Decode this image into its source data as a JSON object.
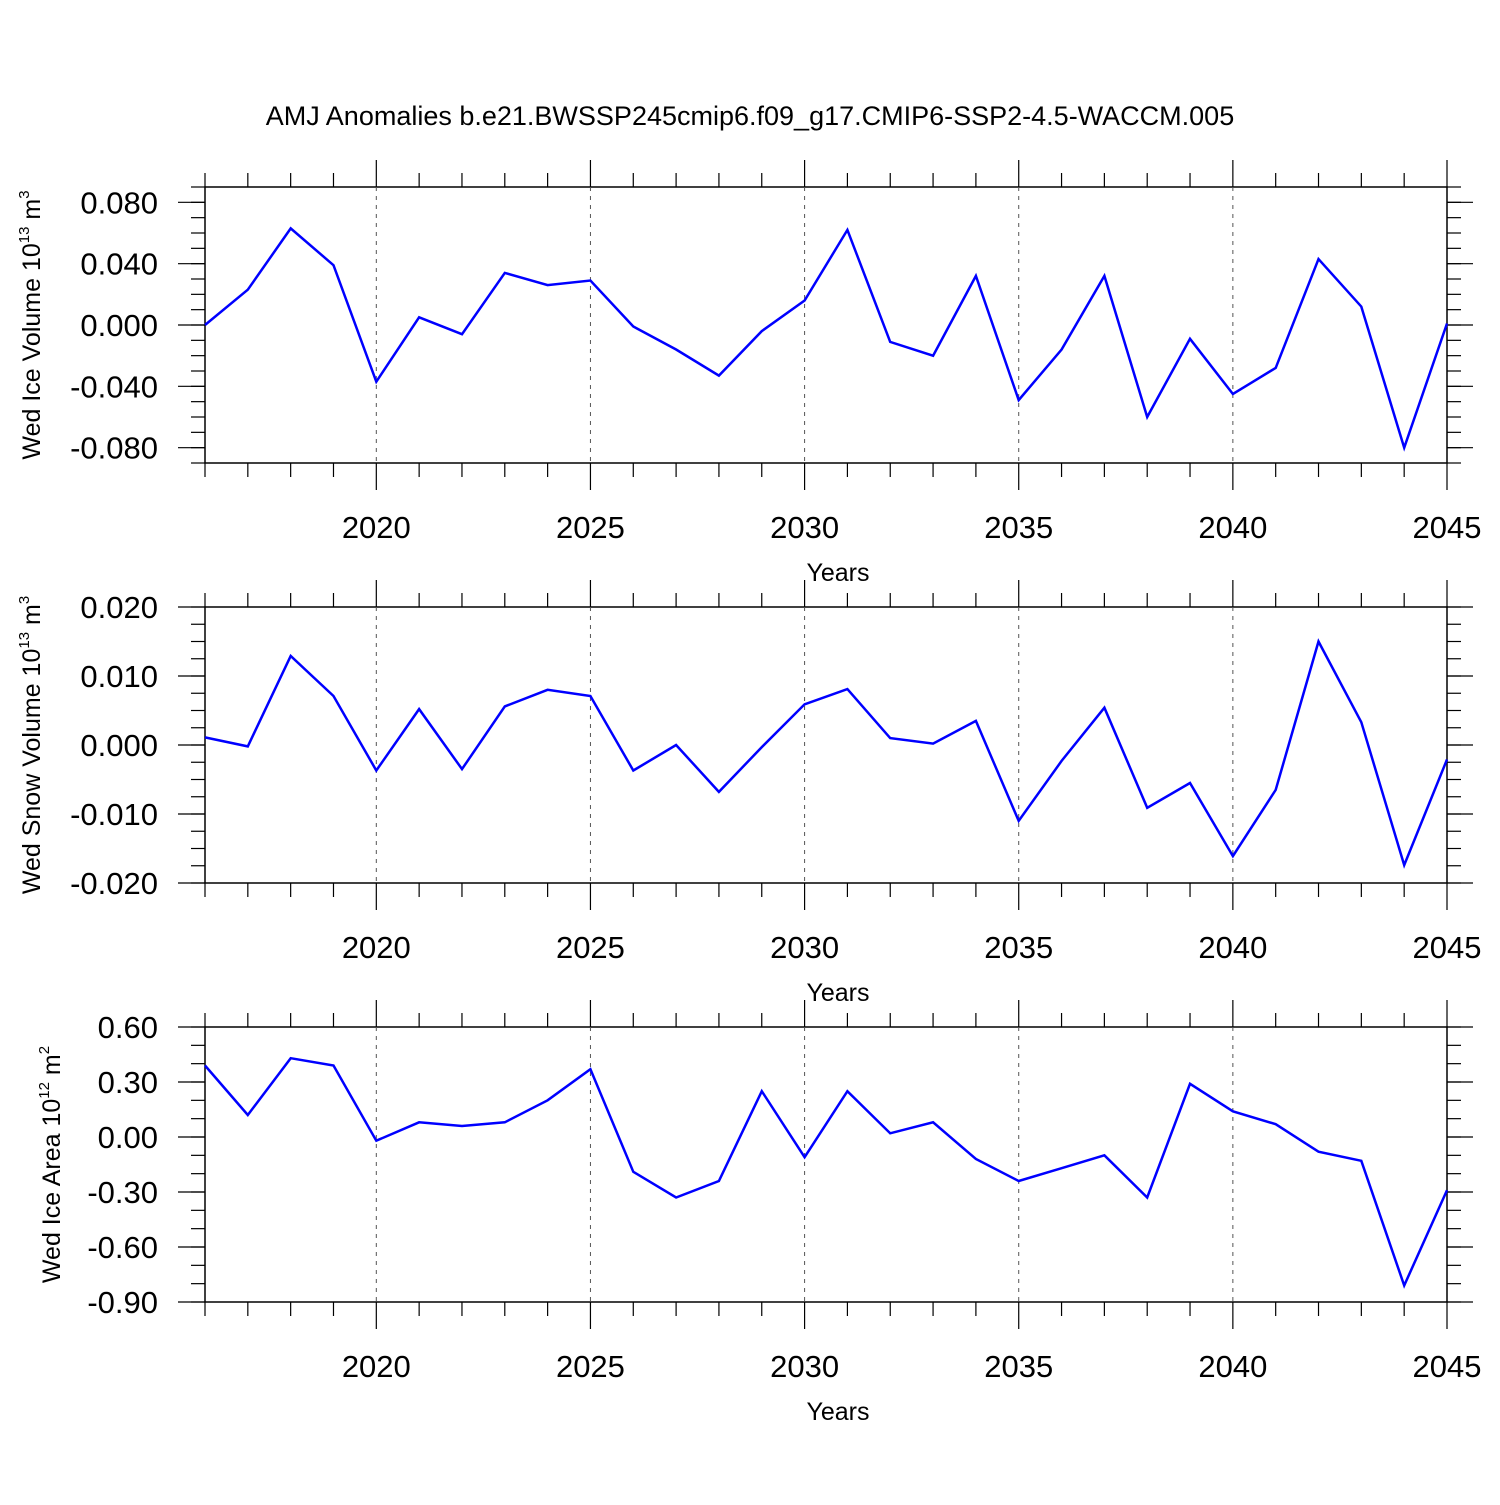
{
  "chart_data": {
    "type": "line",
    "title": "AMJ Anomalies b.e21.BWSSP245cmip6.f09_g17.CMIP6-SSP2-4.5-WACCM.005",
    "line_color": "#0000ff",
    "x": [
      2016,
      2017,
      2018,
      2019,
      2020,
      2021,
      2022,
      2023,
      2024,
      2025,
      2026,
      2027,
      2028,
      2029,
      2030,
      2031,
      2032,
      2033,
      2034,
      2035,
      2036,
      2037,
      2038,
      2039,
      2040,
      2041,
      2042,
      2043,
      2044,
      2045
    ],
    "xlim": [
      2016,
      2045
    ],
    "xticks": [
      2020,
      2025,
      2030,
      2035,
      2040,
      2045
    ],
    "xtick_labels": [
      "2020",
      "2025",
      "2030",
      "2035",
      "2040",
      "2045"
    ],
    "panels": [
      {
        "id": "ice-volume",
        "ylabel_main": "Wed Ice Volume 10",
        "ylabel_exp": "13",
        "ylabel_unit": " m",
        "ylabel_unit_exp": "3",
        "xlabel": "Years",
        "ylim": [
          -0.09,
          0.09
        ],
        "yticks": [
          -0.08,
          -0.04,
          0.0,
          0.04,
          0.08
        ],
        "ytick_labels": [
          "-0.080",
          "-0.040",
          "0.000",
          "0.040",
          "0.080"
        ],
        "minor_step": 0.01,
        "values": [
          0.0,
          0.023,
          0.063,
          0.039,
          -0.037,
          0.005,
          -0.006,
          0.034,
          0.026,
          0.029,
          -0.001,
          -0.016,
          -0.033,
          -0.004,
          0.016,
          0.062,
          -0.011,
          -0.02,
          0.032,
          -0.049,
          -0.016,
          0.032,
          -0.06,
          -0.009,
          -0.045,
          -0.028,
          0.043,
          0.012,
          -0.08,
          0.001
        ]
      },
      {
        "id": "snow-volume",
        "ylabel_main": "Wed Snow Volume 10",
        "ylabel_exp": "13",
        "ylabel_unit": " m",
        "ylabel_unit_exp": "3",
        "xlabel": "Years",
        "ylim": [
          -0.02,
          0.02
        ],
        "yticks": [
          -0.02,
          -0.01,
          0.0,
          0.01,
          0.02
        ],
        "ytick_labels": [
          "-0.020",
          "-0.010",
          "0.000",
          "0.010",
          "0.020"
        ],
        "minor_step": 0.0025,
        "values": [
          0.0011,
          -0.0002,
          0.0129,
          0.0071,
          -0.0037,
          0.0052,
          -0.0035,
          0.0056,
          0.008,
          0.0071,
          -0.0037,
          0.0,
          -0.0068,
          -0.0003,
          0.0059,
          0.0081,
          0.001,
          0.0002,
          0.0035,
          -0.011,
          -0.0023,
          0.0054,
          -0.0091,
          -0.0055,
          -0.0161,
          -0.0065,
          0.015,
          0.0033,
          -0.0174,
          -0.0021
        ]
      },
      {
        "id": "ice-area",
        "ylabel_main": "Wed Ice Area 10",
        "ylabel_exp": "12",
        "ylabel_unit": " m",
        "ylabel_unit_exp": "2",
        "xlabel": "Years",
        "ylim": [
          -0.9,
          0.6
        ],
        "yticks": [
          -0.9,
          -0.6,
          -0.3,
          0.0,
          0.3,
          0.6
        ],
        "ytick_labels": [
          "-0.90",
          "-0.60",
          "-0.30",
          "0.00",
          "0.30",
          "0.60"
        ],
        "minor_step": 0.1,
        "values": [
          0.39,
          0.12,
          0.43,
          0.39,
          -0.02,
          0.08,
          0.06,
          0.08,
          0.2,
          0.37,
          -0.19,
          -0.33,
          -0.24,
          0.25,
          -0.11,
          0.25,
          0.02,
          0.08,
          -0.12,
          -0.24,
          -0.17,
          -0.1,
          -0.33,
          0.29,
          0.14,
          0.07,
          -0.08,
          -0.13,
          -0.81,
          -0.29
        ]
      }
    ]
  }
}
